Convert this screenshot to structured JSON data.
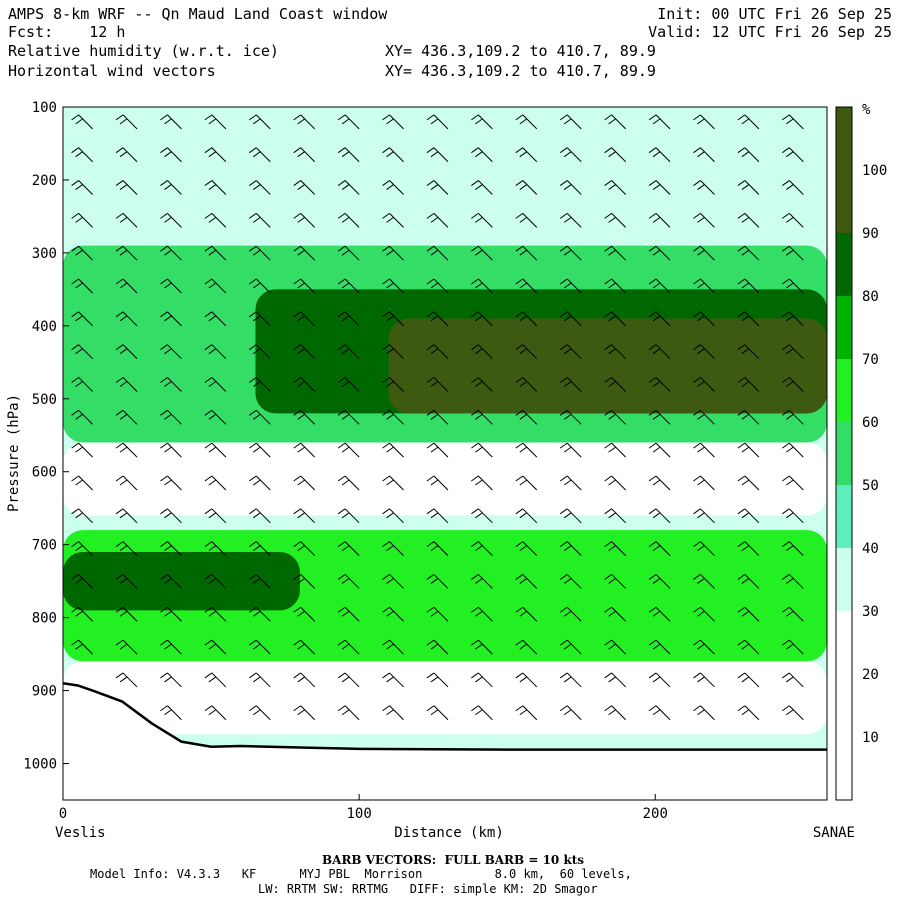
{
  "header": {
    "line1_left": "AMPS 8-km WRF -- Qn Maud Land Coast window",
    "line2_left": "Fcst:    12 h",
    "line3_left": "Relative humidity (w.r.t. ice)",
    "line4_left": "Horizontal wind vectors",
    "line1_right": "Init: 00 UTC Fri 26 Sep 25",
    "line2_right": "Valid: 12 UTC Fri 26 Sep 25",
    "line3_mid": "XY= 436.3,109.2 to 410.7, 89.9",
    "line4_mid": "XY= 436.3,109.2 to 410.7, 89.9"
  },
  "footer": {
    "left_endpoint": "Veslis",
    "right_endpoint": "SANAE",
    "barb_note": "BARB VECTORS:  FULL BARB = 10 kts",
    "model_info": "Model Info: V4.3.3   KF      MYJ PBL  Morrison          8.0 km,  60 levels,",
    "model_info2": "LW: RRTM SW: RRTMG   DIFF: simple KM: 2D Smagor"
  },
  "chart_data": {
    "type": "heatmap",
    "title": "Relative humidity (w.r.t. ice)",
    "xlabel": "Distance (km)",
    "ylabel": "Pressure (hPa)",
    "xlim": [
      0,
      258
    ],
    "ylim": [
      1050,
      100
    ],
    "y_scale": "linear, inverted",
    "xticks": [
      0,
      100,
      200
    ],
    "yticks": [
      100,
      200,
      300,
      400,
      500,
      600,
      700,
      800,
      900,
      1000
    ],
    "colorbar": {
      "unit_label": "%",
      "levels": [
        10,
        20,
        30,
        40,
        50,
        60,
        70,
        80,
        90,
        100
      ],
      "colors": [
        "#ffffff",
        "#ffffff",
        "#ffffff",
        "#ccffee",
        "#5eeebf",
        "#33dd66",
        "#22f022",
        "#00b200",
        "#006800",
        "#3e5a10"
      ]
    },
    "rh_features": [
      {
        "name": "band at 150 hPa",
        "level_pct": 40,
        "x_range": [
          0,
          258
        ],
        "p_range": [
          130,
          170
        ]
      },
      {
        "name": "upper moist layer",
        "level_pct": 60,
        "x_range": [
          0,
          258
        ],
        "p_range": [
          290,
          560
        ]
      },
      {
        "name": "upper moist core",
        "level_pct": 90,
        "x_range": [
          65,
          258
        ],
        "p_range": [
          350,
          520
        ]
      },
      {
        "name": "upper maximum",
        "level_pct": 100,
        "x_range": [
          110,
          258
        ],
        "p_range": [
          390,
          520
        ]
      },
      {
        "name": "mid dry layer",
        "level_pct": 30,
        "x_range": [
          0,
          258
        ],
        "p_range": [
          560,
          660
        ]
      },
      {
        "name": "lower moist layer",
        "level_pct": 70,
        "x_range": [
          0,
          258
        ],
        "p_range": [
          680,
          860
        ]
      },
      {
        "name": "lower moist core",
        "level_pct": 90,
        "x_range": [
          0,
          80
        ],
        "p_range": [
          710,
          790
        ]
      },
      {
        "name": "near-surface layer",
        "level_pct": 30,
        "x_range": [
          0,
          258
        ],
        "p_range": [
          860,
          960
        ]
      }
    ],
    "terrain_profile": {
      "x": [
        0,
        5,
        10,
        20,
        30,
        40,
        50,
        60,
        80,
        100,
        150,
        200,
        258
      ],
      "p": [
        890,
        893,
        900,
        915,
        945,
        970,
        977,
        976,
        978,
        980,
        981,
        981,
        981
      ]
    },
    "wind_barbs": {
      "note": "Barbs on a grid of columns (every ~10 km) and levels (every ~50 hPa); westerly to north-westerly flow, ~20-40 kts aloft, ~20-30 kts near surface"
    }
  }
}
